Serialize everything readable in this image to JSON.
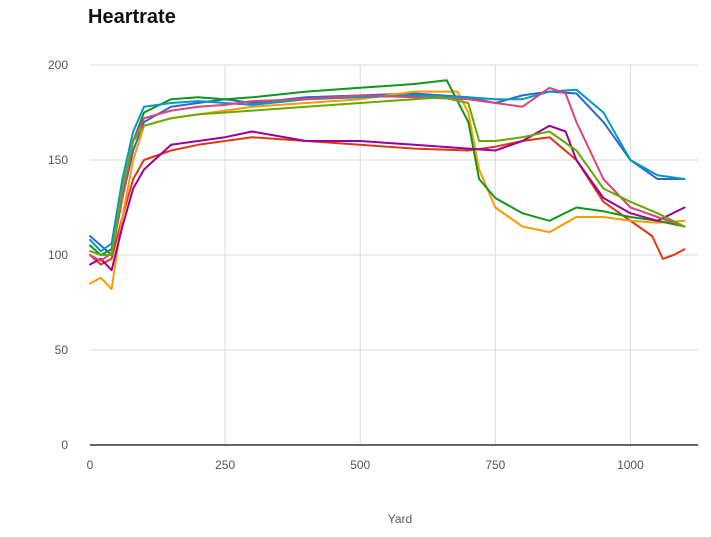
{
  "chart_data": {
    "type": "line",
    "title": "Heartrate",
    "xlabel": "Yard",
    "ylabel": "",
    "xlim": [
      0,
      1125
    ],
    "ylim": [
      0,
      200
    ],
    "x_ticks": [
      0,
      250,
      500,
      750,
      1000
    ],
    "y_ticks": [
      0,
      50,
      100,
      150,
      200
    ],
    "grid": true,
    "legend": "none",
    "series": [
      {
        "color": "#3366cc",
        "points": [
          [
            0,
            110
          ],
          [
            20,
            105
          ],
          [
            40,
            100
          ],
          [
            60,
            130
          ],
          [
            80,
            155
          ],
          [
            100,
            170
          ],
          [
            150,
            178
          ],
          [
            200,
            180
          ],
          [
            250,
            182
          ],
          [
            300,
            180
          ],
          [
            400,
            183
          ],
          [
            500,
            184
          ],
          [
            600,
            185
          ],
          [
            700,
            183
          ],
          [
            750,
            180
          ],
          [
            800,
            184
          ],
          [
            850,
            186
          ],
          [
            900,
            185
          ],
          [
            950,
            170
          ],
          [
            1000,
            150
          ],
          [
            1050,
            140
          ],
          [
            1100,
            140
          ]
        ]
      },
      {
        "color": "#dc3912",
        "points": [
          [
            0,
            100
          ],
          [
            20,
            95
          ],
          [
            40,
            98
          ],
          [
            60,
            120
          ],
          [
            80,
            140
          ],
          [
            100,
            150
          ],
          [
            150,
            155
          ],
          [
            200,
            158
          ],
          [
            250,
            160
          ],
          [
            300,
            162
          ],
          [
            400,
            160
          ],
          [
            500,
            158
          ],
          [
            600,
            156
          ],
          [
            700,
            155
          ],
          [
            750,
            157
          ],
          [
            800,
            160
          ],
          [
            850,
            162
          ],
          [
            900,
            150
          ],
          [
            950,
            128
          ],
          [
            1000,
            118
          ],
          [
            1040,
            110
          ],
          [
            1060,
            98
          ],
          [
            1080,
            100
          ],
          [
            1100,
            103
          ]
        ]
      },
      {
        "color": "#ff9900",
        "points": [
          [
            0,
            85
          ],
          [
            20,
            88
          ],
          [
            40,
            82
          ],
          [
            60,
            120
          ],
          [
            80,
            150
          ],
          [
            100,
            168
          ],
          [
            150,
            172
          ],
          [
            200,
            174
          ],
          [
            250,
            176
          ],
          [
            300,
            178
          ],
          [
            400,
            180
          ],
          [
            500,
            182
          ],
          [
            600,
            186
          ],
          [
            680,
            186
          ],
          [
            700,
            175
          ],
          [
            720,
            145
          ],
          [
            750,
            125
          ],
          [
            800,
            115
          ],
          [
            850,
            112
          ],
          [
            900,
            120
          ],
          [
            950,
            120
          ],
          [
            1000,
            118
          ],
          [
            1050,
            117
          ],
          [
            1100,
            118
          ]
        ]
      },
      {
        "color": "#109618",
        "points": [
          [
            0,
            105
          ],
          [
            20,
            100
          ],
          [
            40,
            103
          ],
          [
            60,
            135
          ],
          [
            80,
            160
          ],
          [
            100,
            175
          ],
          [
            150,
            182
          ],
          [
            200,
            183
          ],
          [
            250,
            182
          ],
          [
            300,
            183
          ],
          [
            400,
            186
          ],
          [
            500,
            188
          ],
          [
            600,
            190
          ],
          [
            660,
            192
          ],
          [
            700,
            170
          ],
          [
            720,
            140
          ],
          [
            750,
            130
          ],
          [
            800,
            122
          ],
          [
            850,
            118
          ],
          [
            900,
            125
          ],
          [
            950,
            123
          ],
          [
            1000,
            120
          ],
          [
            1050,
            118
          ],
          [
            1100,
            115
          ]
        ]
      },
      {
        "color": "#990099",
        "points": [
          [
            0,
            95
          ],
          [
            20,
            98
          ],
          [
            40,
            92
          ],
          [
            60,
            115
          ],
          [
            80,
            135
          ],
          [
            100,
            145
          ],
          [
            150,
            158
          ],
          [
            200,
            160
          ],
          [
            250,
            162
          ],
          [
            300,
            165
          ],
          [
            400,
            160
          ],
          [
            500,
            160
          ],
          [
            600,
            158
          ],
          [
            700,
            156
          ],
          [
            750,
            155
          ],
          [
            800,
            160
          ],
          [
            850,
            168
          ],
          [
            880,
            165
          ],
          [
            900,
            150
          ],
          [
            950,
            130
          ],
          [
            1000,
            122
          ],
          [
            1050,
            118
          ],
          [
            1100,
            125
          ]
        ]
      },
      {
        "color": "#0099c6",
        "points": [
          [
            0,
            108
          ],
          [
            20,
            102
          ],
          [
            40,
            106
          ],
          [
            60,
            140
          ],
          [
            80,
            165
          ],
          [
            100,
            178
          ],
          [
            150,
            180
          ],
          [
            200,
            181
          ],
          [
            250,
            180
          ],
          [
            300,
            179
          ],
          [
            400,
            182
          ],
          [
            500,
            183
          ],
          [
            600,
            184
          ],
          [
            700,
            183
          ],
          [
            750,
            182
          ],
          [
            800,
            182
          ],
          [
            850,
            186
          ],
          [
            900,
            187
          ],
          [
            950,
            175
          ],
          [
            1000,
            150
          ],
          [
            1050,
            142
          ],
          [
            1100,
            140
          ]
        ]
      },
      {
        "color": "#dd4477",
        "points": [
          [
            0,
            100
          ],
          [
            20,
            97
          ],
          [
            40,
            101
          ],
          [
            60,
            130
          ],
          [
            80,
            160
          ],
          [
            100,
            172
          ],
          [
            150,
            176
          ],
          [
            200,
            178
          ],
          [
            250,
            179
          ],
          [
            300,
            181
          ],
          [
            400,
            182
          ],
          [
            500,
            184
          ],
          [
            600,
            183
          ],
          [
            700,
            182
          ],
          [
            750,
            180
          ],
          [
            800,
            178
          ],
          [
            850,
            188
          ],
          [
            880,
            185
          ],
          [
            900,
            170
          ],
          [
            950,
            140
          ],
          [
            1000,
            125
          ],
          [
            1050,
            120
          ],
          [
            1100,
            115
          ]
        ]
      },
      {
        "color": "#66aa00",
        "points": [
          [
            0,
            102
          ],
          [
            20,
            100
          ],
          [
            40,
            100
          ],
          [
            60,
            135
          ],
          [
            80,
            160
          ],
          [
            100,
            168
          ],
          [
            150,
            172
          ],
          [
            200,
            174
          ],
          [
            250,
            175
          ],
          [
            300,
            176
          ],
          [
            400,
            178
          ],
          [
            500,
            180
          ],
          [
            600,
            182
          ],
          [
            650,
            183
          ],
          [
            700,
            180
          ],
          [
            720,
            160
          ],
          [
            750,
            160
          ],
          [
            800,
            162
          ],
          [
            850,
            165
          ],
          [
            900,
            155
          ],
          [
            950,
            135
          ],
          [
            1000,
            128
          ],
          [
            1050,
            122
          ],
          [
            1100,
            115
          ]
        ]
      }
    ]
  }
}
